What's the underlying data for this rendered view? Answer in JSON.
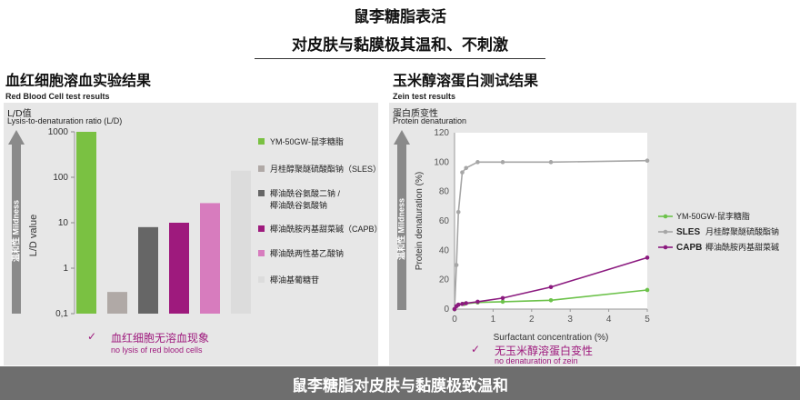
{
  "header": {
    "title_line1": "鼠李糖脂表活",
    "title_line2": "对皮肤与黏膜极其温和、不刺激"
  },
  "left": {
    "title": "血红细胞溶血实验结果",
    "subtitle": "Red Blood Cell test results",
    "axis_cn": "L/D值",
    "axis_en": "Lysis-to-denaturation ratio (L/D)",
    "arrow_label": "温和性 Mildness",
    "y_label": "L/D value",
    "note_cn": "血红细胞无溶血现象",
    "note_en": "no lysis of red blood cells",
    "check": "✓"
  },
  "right": {
    "title": "玉米醇溶蛋白测试结果",
    "subtitle": "Zein test results",
    "axis_cn": "蛋白质变性",
    "axis_en": "Protein denaturation",
    "arrow_label": "温和性 Mildness",
    "note_cn": "无玉米醇溶蛋白变性",
    "note_en": "no denaturation of zein",
    "check": "✓"
  },
  "footer": {
    "text": "鼠李糖脂对皮肤与黏膜极致温和"
  },
  "chart_data": [
    {
      "type": "bar",
      "scale": "log",
      "ylim": [
        0.1,
        1000
      ],
      "yticks": [
        "0,1",
        "1",
        "10",
        "100",
        "1000"
      ],
      "categories": [
        "YM-50GW-鼠李糖脂",
        "月桂醇聚醚硫酸酯钠（SLES）",
        "椰油酰谷氨酸二钠 / 椰油酰谷氨酸钠",
        "椰油酰胺丙基甜菜碱（CAPB）",
        "椰油酰两性基乙酸钠",
        "椰油基葡糖苷"
      ],
      "values": [
        1000,
        0.3,
        8,
        10,
        27,
        140
      ],
      "colors": [
        "#7ac142",
        "#b0a9a6",
        "#666666",
        "#9e1a7d",
        "#d77cbe",
        "#dcdcdc"
      ],
      "legend_position": "right"
    },
    {
      "type": "line",
      "xlabel": "Surfactant concentration (%)",
      "ylabel": "Protein denaturation (%)",
      "xlim": [
        0,
        5
      ],
      "ylim": [
        0,
        120
      ],
      "xticks": [
        0,
        1,
        2,
        3,
        4,
        5
      ],
      "yticks": [
        0,
        20,
        40,
        60,
        80,
        100,
        120
      ],
      "series": [
        {
          "name": "YM-50GW-鼠李糖脂",
          "legend_prefix": "",
          "color": "#6cc24a",
          "x": [
            0,
            0.1,
            0.25,
            0.6,
            1.25,
            2.5,
            5
          ],
          "y": [
            0,
            3,
            3.5,
            4.5,
            5,
            6,
            13
          ]
        },
        {
          "name": "月桂醇聚醚硫酸酯钠",
          "legend_prefix": "SLES",
          "color": "#a6a6a6",
          "x": [
            0,
            0.05,
            0.1,
            0.2,
            0.3,
            0.6,
            1.25,
            2.5,
            5
          ],
          "y": [
            0,
            30,
            66,
            93,
            96,
            100,
            100,
            100,
            101
          ]
        },
        {
          "name": "椰油酰胺丙基甜菜碱",
          "legend_prefix": "CAPB",
          "color": "#8b1a7f",
          "x": [
            0,
            0.05,
            0.1,
            0.2,
            0.3,
            0.6,
            1.25,
            2.5,
            5
          ],
          "y": [
            0,
            2,
            3,
            3.5,
            4,
            5,
            7.5,
            15,
            35
          ]
        }
      ],
      "legend_position": "right"
    }
  ]
}
